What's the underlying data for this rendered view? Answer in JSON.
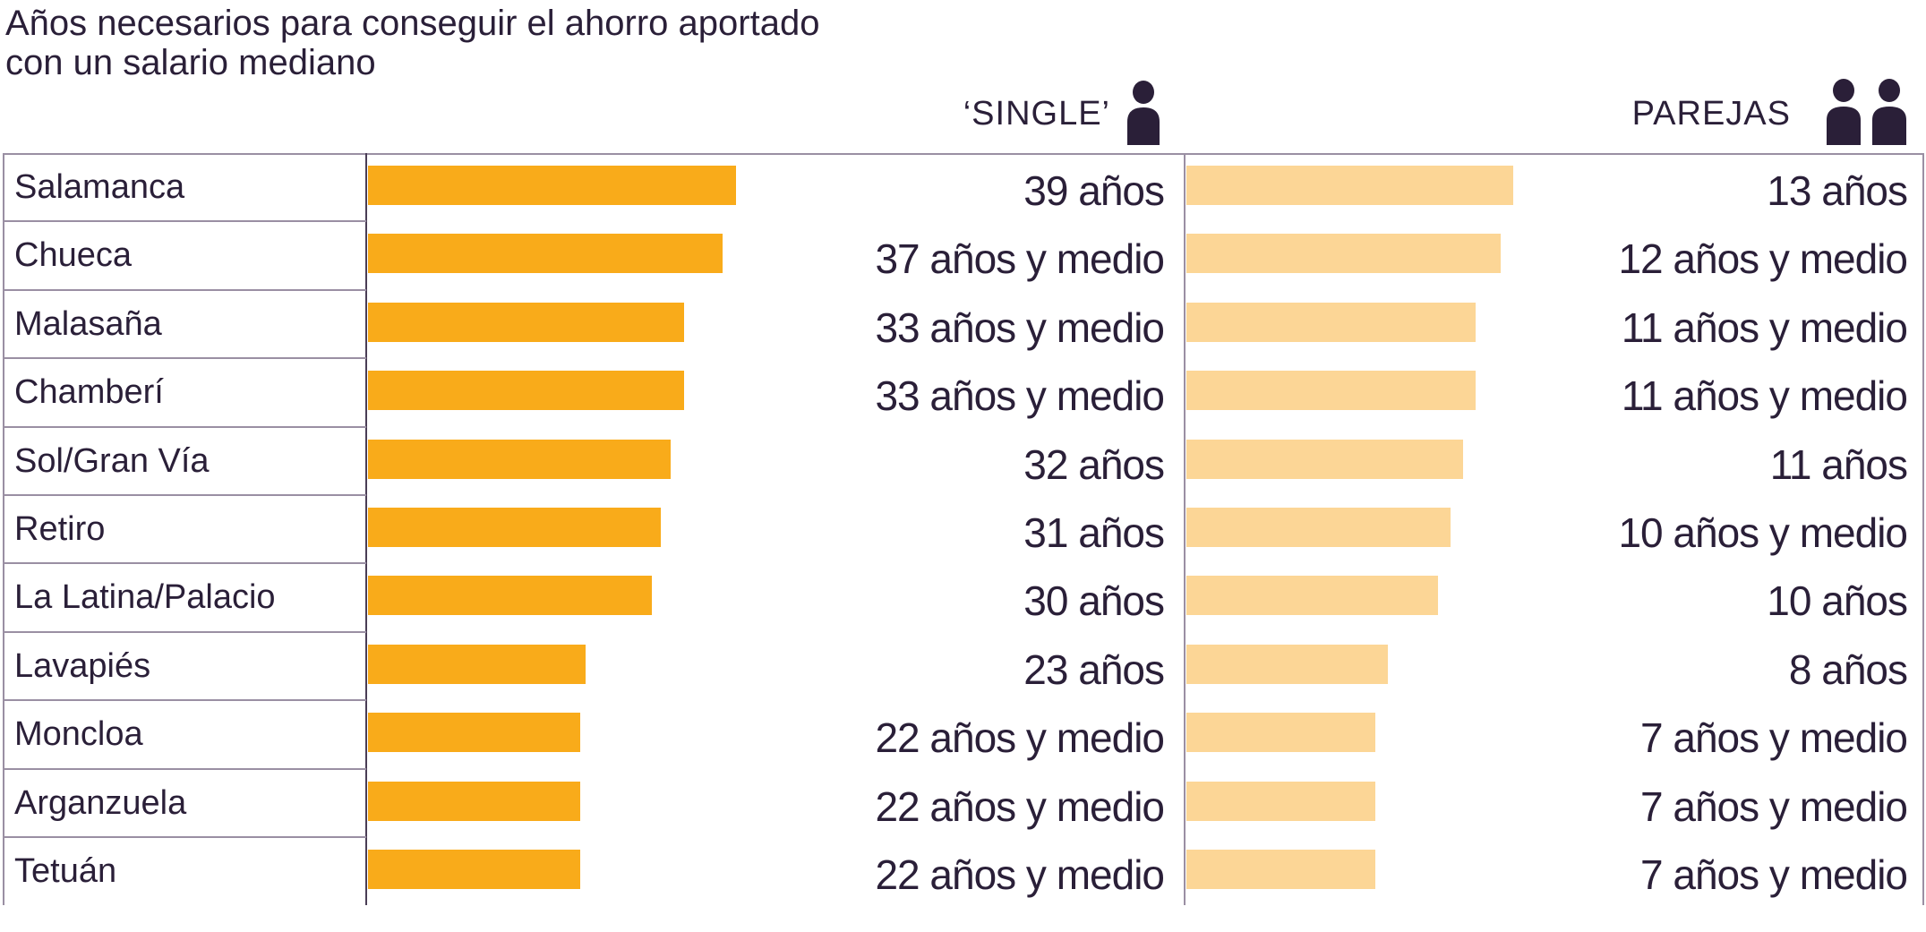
{
  "title_line1": "Años necesarios para conseguir el ahorro aportado",
  "title_line2": "con un salario mediano",
  "chart_data": {
    "type": "bar",
    "orientation": "horizontal",
    "categories": [
      "Salamanca",
      "Chueca",
      "Malasaña",
      "Chamberí",
      "Sol/Gran Vía",
      "Retiro",
      "La Latina/Palacio",
      "Lavapiés",
      "Moncloa",
      "Arganzuela",
      "Tetuán"
    ],
    "series": [
      {
        "name": "‘SINGLE’",
        "icon": "person-icon",
        "color": "#f9ab1a",
        "values": [
          39,
          37.5,
          33.5,
          33.5,
          32,
          31,
          30,
          23,
          22.5,
          22.5,
          22.5
        ],
        "labels": [
          "39 años",
          "37 años y medio",
          "33 años y medio",
          "33 años y medio",
          "32 años",
          "31 años",
          "30 años",
          "23 años",
          "22 años y medio",
          "22 años y medio",
          "22 años y medio"
        ]
      },
      {
        "name": "PAREJAS",
        "icon": "two-persons-icon",
        "color": "#fcd696",
        "values": [
          13,
          12.5,
          11.5,
          11.5,
          11,
          10.5,
          10,
          8,
          7.5,
          7.5,
          7.5
        ],
        "labels": [
          "13 años",
          "12 años y medio",
          "11 años y medio",
          "11 años y medio",
          "11 años",
          "10 años y medio",
          "10 años",
          "8 años",
          "7 años y medio",
          "7 años y medio",
          "7 años y medio"
        ]
      }
    ],
    "grid": false,
    "legend": "top"
  }
}
